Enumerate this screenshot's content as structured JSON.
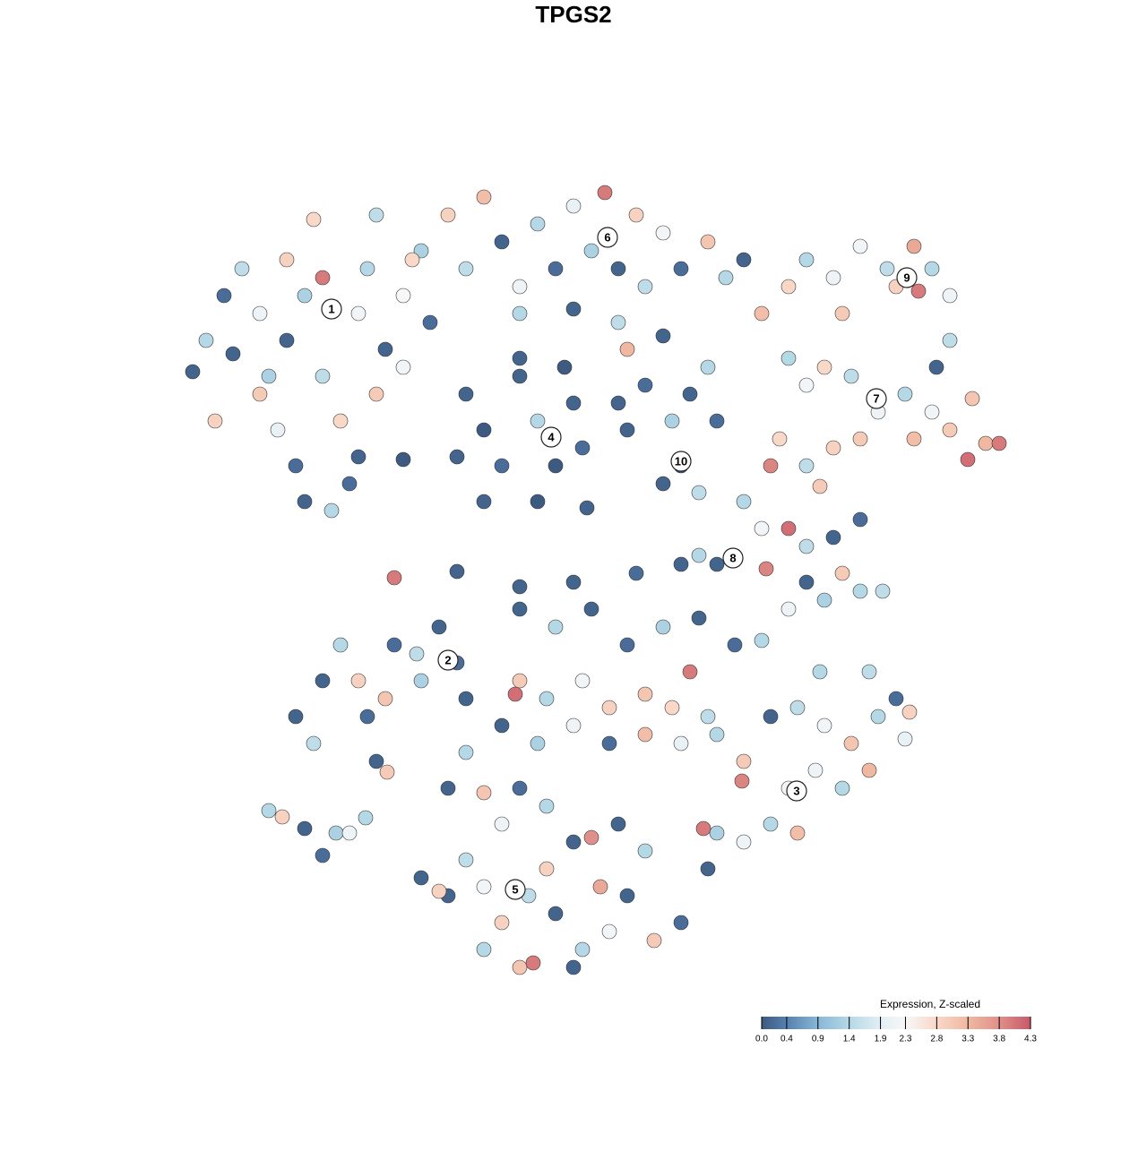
{
  "chart_data": {
    "type": "scatter",
    "title": "TPGS2",
    "xlim": [
      200,
      1130
    ],
    "ylim": [
      1090,
      180
    ],
    "points": [
      [
        215,
        415,
        0.1
      ],
      [
        230,
        380,
        1.4
      ],
      [
        250,
        330,
        0.2
      ],
      [
        240,
        470,
        2.9
      ],
      [
        270,
        300,
        1.5
      ],
      [
        290,
        350,
        2.1
      ],
      [
        300,
        420,
        1.3
      ],
      [
        320,
        380,
        0.1
      ],
      [
        310,
        480,
        2.0
      ],
      [
        330,
        520,
        0.2
      ],
      [
        340,
        560,
        0.1
      ],
      [
        360,
        310,
        4.0
      ],
      [
        360,
        420,
        1.5
      ],
      [
        380,
        470,
        2.8
      ],
      [
        390,
        540,
        0.2
      ],
      [
        400,
        350,
        2.2
      ],
      [
        410,
        300,
        1.4
      ],
      [
        420,
        440,
        3.0
      ],
      [
        430,
        390,
        0.1
      ],
      [
        450,
        330,
        2.3
      ],
      [
        470,
        280,
        1.3
      ],
      [
        480,
        360,
        0.2
      ],
      [
        500,
        240,
        2.9
      ],
      [
        520,
        300,
        1.5
      ],
      [
        540,
        220,
        3.2
      ],
      [
        560,
        270,
        0.1
      ],
      [
        580,
        320,
        2.1
      ],
      [
        600,
        250,
        1.4
      ],
      [
        620,
        300,
        0.2
      ],
      [
        640,
        230,
        2.0
      ],
      [
        660,
        280,
        1.3
      ],
      [
        675,
        215,
        4.0
      ],
      [
        690,
        300,
        0.1
      ],
      [
        710,
        240,
        2.9
      ],
      [
        720,
        320,
        1.5
      ],
      [
        740,
        260,
        2.2
      ],
      [
        760,
        300,
        0.2
      ],
      [
        790,
        270,
        3.1
      ],
      [
        810,
        310,
        1.4
      ],
      [
        830,
        290,
        0.1
      ],
      [
        350,
        245,
        2.8
      ],
      [
        290,
        440,
        3.0
      ],
      [
        370,
        570,
        1.4
      ],
      [
        260,
        395,
        0.1
      ],
      [
        460,
        290,
        2.8
      ],
      [
        420,
        240,
        1.5
      ],
      [
        340,
        330,
        1.3
      ],
      [
        450,
        410,
        2.2
      ],
      [
        400,
        510,
        0.1
      ],
      [
        320,
        290,
        2.9
      ],
      [
        700,
        390,
        3.3
      ],
      [
        690,
        360,
        1.5
      ],
      [
        640,
        345,
        0.1
      ],
      [
        580,
        350,
        1.4
      ],
      [
        740,
        375,
        0.1
      ],
      [
        520,
        440,
        0.1
      ],
      [
        540,
        480,
        0.0
      ],
      [
        560,
        520,
        0.2
      ],
      [
        580,
        420,
        0.1
      ],
      [
        600,
        470,
        1.4
      ],
      [
        620,
        520,
        0.0
      ],
      [
        640,
        450,
        0.1
      ],
      [
        650,
        500,
        0.2
      ],
      [
        540,
        560,
        0.1
      ],
      [
        600,
        560,
        0.0
      ],
      [
        510,
        510,
        0.1
      ],
      [
        580,
        400,
        0.1
      ],
      [
        630,
        410,
        0.0
      ],
      [
        690,
        450,
        0.1
      ],
      [
        720,
        430,
        0.2
      ],
      [
        700,
        480,
        0.1
      ],
      [
        750,
        470,
        1.3
      ],
      [
        770,
        440,
        0.1
      ],
      [
        790,
        410,
        1.4
      ],
      [
        760,
        520,
        0.0
      ],
      [
        780,
        550,
        1.5
      ],
      [
        740,
        540,
        0.1
      ],
      [
        800,
        470,
        0.2
      ],
      [
        450,
        513,
        0.0
      ],
      [
        655,
        567,
        0.1
      ],
      [
        880,
        320,
        2.8
      ],
      [
        900,
        290,
        1.4
      ],
      [
        930,
        310,
        2.1
      ],
      [
        960,
        275,
        2.2
      ],
      [
        990,
        300,
        1.5
      ],
      [
        1020,
        275,
        3.5
      ],
      [
        1040,
        300,
        1.4
      ],
      [
        1060,
        330,
        2.1
      ],
      [
        1025,
        325,
        4.0
      ],
      [
        1060,
        380,
        1.5
      ],
      [
        1000,
        320,
        2.9
      ],
      [
        940,
        350,
        3.0
      ],
      [
        850,
        350,
        3.2
      ],
      [
        880,
        400,
        1.4
      ],
      [
        900,
        430,
        2.2
      ],
      [
        920,
        410,
        2.8
      ],
      [
        950,
        420,
        1.5
      ],
      [
        980,
        460,
        2.1
      ],
      [
        1010,
        440,
        1.4
      ],
      [
        1040,
        460,
        2.2
      ],
      [
        1060,
        480,
        3.0
      ],
      [
        1085,
        445,
        3.1
      ],
      [
        1100,
        495,
        3.3
      ],
      [
        1115,
        495,
        4.0
      ],
      [
        1080,
        513,
        4.1
      ],
      [
        1020,
        490,
        3.2
      ],
      [
        960,
        490,
        3.0
      ],
      [
        930,
        500,
        2.9
      ],
      [
        900,
        520,
        1.5
      ],
      [
        870,
        490,
        2.8
      ],
      [
        860,
        520,
        3.9
      ],
      [
        915,
        543,
        3.0
      ],
      [
        1045,
        410,
        0.1
      ],
      [
        830,
        560,
        1.4
      ],
      [
        850,
        590,
        2.2
      ],
      [
        880,
        590,
        4.1
      ],
      [
        900,
        610,
        1.5
      ],
      [
        930,
        600,
        0.1
      ],
      [
        960,
        580,
        0.2
      ],
      [
        940,
        640,
        3.0
      ],
      [
        960,
        660,
        1.4
      ],
      [
        900,
        650,
        0.1
      ],
      [
        880,
        680,
        2.1
      ],
      [
        920,
        670,
        1.3
      ],
      [
        985,
        660,
        1.5
      ],
      [
        855,
        635,
        3.9
      ],
      [
        800,
        630,
        0.1
      ],
      [
        780,
        620,
        1.4
      ],
      [
        760,
        630,
        0.1
      ],
      [
        330,
        800,
        0.1
      ],
      [
        350,
        830,
        1.5
      ],
      [
        360,
        760,
        0.1
      ],
      [
        380,
        720,
        1.4
      ],
      [
        400,
        760,
        2.9
      ],
      [
        410,
        800,
        0.2
      ],
      [
        420,
        850,
        0.1
      ],
      [
        430,
        780,
        3.1
      ],
      [
        440,
        720,
        0.2
      ],
      [
        470,
        760,
        1.3
      ],
      [
        490,
        700,
        0.1
      ],
      [
        510,
        740,
        0.2
      ],
      [
        520,
        780,
        0.1
      ],
      [
        432,
        862,
        3.0
      ],
      [
        465,
        730,
        1.5
      ],
      [
        300,
        905,
        1.4
      ],
      [
        315,
        912,
        2.9
      ],
      [
        340,
        925,
        0.1
      ],
      [
        360,
        955,
        0.2
      ],
      [
        375,
        930,
        1.3
      ],
      [
        390,
        930,
        2.1
      ],
      [
        408,
        913,
        1.4
      ],
      [
        580,
        680,
        0.1
      ],
      [
        620,
        700,
        1.4
      ],
      [
        660,
        680,
        0.1
      ],
      [
        700,
        720,
        0.2
      ],
      [
        740,
        700,
        1.3
      ],
      [
        780,
        690,
        0.1
      ],
      [
        820,
        720,
        0.2
      ],
      [
        850,
        715,
        1.4
      ],
      [
        640,
        650,
        0.1
      ],
      [
        710,
        640,
        0.2
      ],
      [
        580,
        760,
        3.0
      ],
      [
        575,
        775,
        4.1
      ],
      [
        610,
        780,
        1.4
      ],
      [
        650,
        760,
        2.2
      ],
      [
        680,
        790,
        2.9
      ],
      [
        720,
        775,
        3.1
      ],
      [
        770,
        750,
        4.0
      ],
      [
        750,
        790,
        2.8
      ],
      [
        790,
        800,
        1.5
      ],
      [
        560,
        810,
        0.1
      ],
      [
        600,
        830,
        1.3
      ],
      [
        640,
        810,
        2.1
      ],
      [
        680,
        830,
        0.2
      ],
      [
        720,
        820,
        3.2
      ],
      [
        760,
        830,
        2.0
      ],
      [
        800,
        820,
        1.4
      ],
      [
        830,
        850,
        3.0
      ],
      [
        860,
        800,
        0.1
      ],
      [
        890,
        790,
        1.5
      ],
      [
        920,
        810,
        2.2
      ],
      [
        950,
        830,
        3.1
      ],
      [
        980,
        800,
        1.4
      ],
      [
        1000,
        780,
        0.2
      ],
      [
        1015,
        795,
        2.9
      ],
      [
        1010,
        825,
        2.0
      ],
      [
        970,
        860,
        3.3
      ],
      [
        940,
        880,
        1.4
      ],
      [
        910,
        860,
        2.1
      ],
      [
        880,
        880,
        2.2
      ],
      [
        890,
        930,
        3.2
      ],
      [
        860,
        920,
        1.4
      ],
      [
        830,
        940,
        2.1
      ],
      [
        800,
        930,
        1.3
      ],
      [
        785,
        925,
        4.0
      ],
      [
        790,
        970,
        0.1
      ],
      [
        915,
        750,
        1.4
      ],
      [
        970,
        750,
        1.5
      ],
      [
        828,
        872,
        3.9
      ],
      [
        500,
        880,
        0.1
      ],
      [
        520,
        840,
        1.4
      ],
      [
        540,
        885,
        3.1
      ],
      [
        560,
        920,
        2.1
      ],
      [
        580,
        880,
        0.2
      ],
      [
        610,
        900,
        1.4
      ],
      [
        640,
        940,
        0.1
      ],
      [
        660,
        935,
        3.8
      ],
      [
        690,
        920,
        0.1
      ],
      [
        720,
        950,
        1.4
      ],
      [
        520,
        960,
        1.5
      ],
      [
        540,
        990,
        2.2
      ],
      [
        500,
        1000,
        0.1
      ],
      [
        560,
        1030,
        2.9
      ],
      [
        590,
        1000,
        1.5
      ],
      [
        620,
        1020,
        0.1
      ],
      [
        650,
        1060,
        1.4
      ],
      [
        680,
        1040,
        2.2
      ],
      [
        700,
        1000,
        0.1
      ],
      [
        730,
        1050,
        3.0
      ],
      [
        760,
        1030,
        0.2
      ],
      [
        580,
        1080,
        3.1
      ],
      [
        540,
        1060,
        1.4
      ],
      [
        640,
        1080,
        0.1
      ],
      [
        670,
        990,
        3.5
      ],
      [
        610,
        970,
        2.9
      ],
      [
        470,
        980,
        0.1
      ],
      [
        490,
        995,
        2.9
      ],
      [
        595,
        1075,
        4.0
      ],
      [
        440,
        645,
        4.0
      ],
      [
        510,
        638,
        0.1
      ],
      [
        580,
        655,
        0.1
      ]
    ],
    "cluster_labels": [
      {
        "text": "1",
        "x": 370,
        "y": 345
      },
      {
        "text": "2",
        "x": 500,
        "y": 737
      },
      {
        "text": "3",
        "x": 889,
        "y": 883
      },
      {
        "text": "4",
        "x": 615,
        "y": 488
      },
      {
        "text": "5",
        "x": 575,
        "y": 993
      },
      {
        "text": "6",
        "x": 678,
        "y": 265
      },
      {
        "text": "7",
        "x": 978,
        "y": 445
      },
      {
        "text": "8",
        "x": 818,
        "y": 623
      },
      {
        "text": "9",
        "x": 1012,
        "y": 310
      },
      {
        "text": "10",
        "x": 760,
        "y": 515
      }
    ],
    "colorbar": {
      "title": "Expression, Z-scaled",
      "clim": [
        0,
        4.3
      ],
      "ticks": [
        {
          "value": 0,
          "label": "0.0"
        },
        0.4,
        0.9,
        1.4,
        1.9,
        2.3,
        2.8,
        3.3,
        3.8,
        4.3
      ],
      "colors": [
        "#3d5a80",
        "#5580b0",
        "#88b7d6",
        "#b5d8e6",
        "#e2eff5",
        "#f7f7f7",
        "#f9d8c8",
        "#f0b8a0",
        "#e0908a",
        "#c85868"
      ]
    }
  }
}
